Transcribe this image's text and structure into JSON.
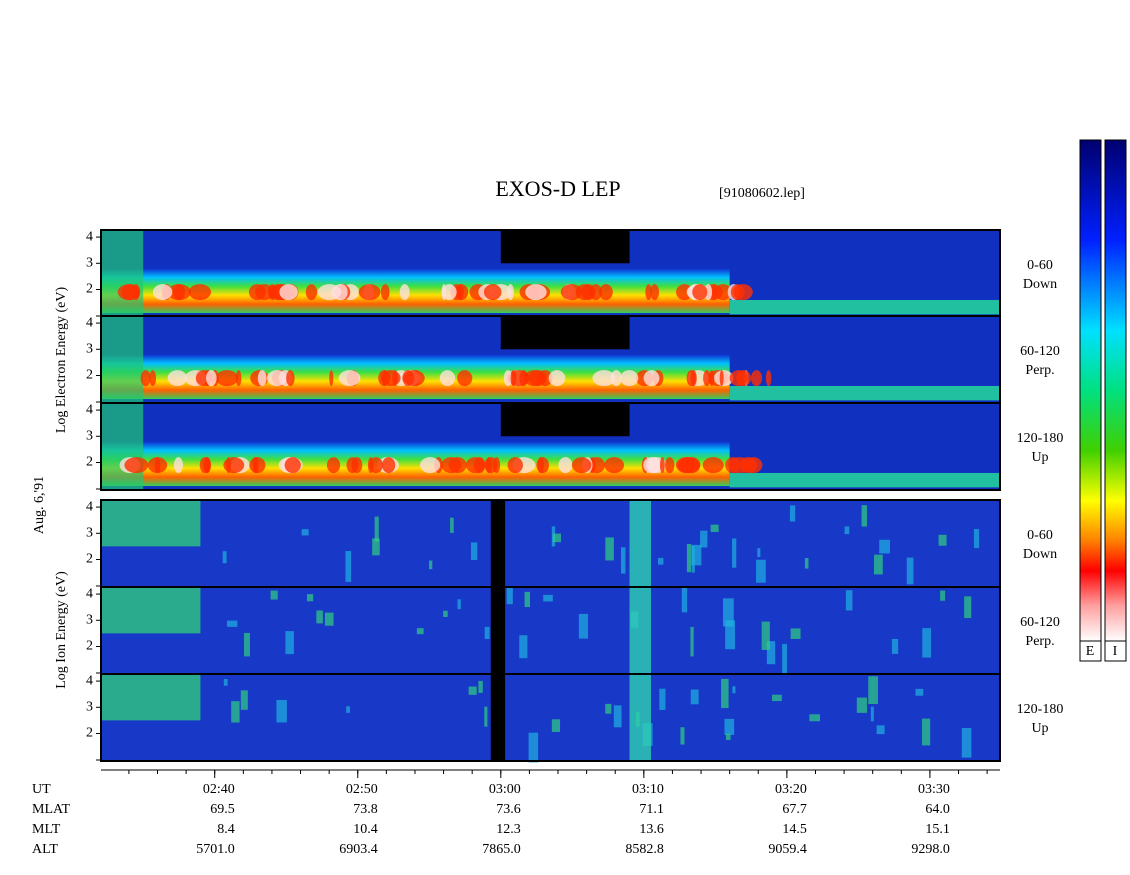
{
  "header": {
    "title": "EXOS-D LEP",
    "file": "[91080602.lep]"
  },
  "electron_axis_label": "Log Electron Energy (eV)",
  "ion_axis_label": "Log Ion Energy (eV)",
  "date": "Aug. 6,'91",
  "energy_axis": {
    "ylim": [
      0.95,
      4.27
    ],
    "yticks": [
      2,
      3,
      4
    ]
  },
  "panel_labels": [
    [
      "0-60",
      "Down"
    ],
    [
      "60-120",
      "Perp."
    ],
    [
      "120-180",
      "Up"
    ],
    [
      "0-60",
      "Down"
    ],
    [
      "60-120",
      "Perp."
    ],
    [
      "120-180",
      "Up"
    ]
  ],
  "time_axis": {
    "xlim": [
      152.05,
      214.9
    ],
    "xticks": [
      {
        "value": 160,
        "label": "02:40"
      },
      {
        "value": 170,
        "label": "02:50"
      },
      {
        "value": 180,
        "label": "03:00"
      },
      {
        "value": 190,
        "label": "03:10"
      },
      {
        "value": 200,
        "label": "03:20"
      },
      {
        "value": 210,
        "label": "03:30"
      }
    ]
  },
  "ephemeris": {
    "ut_label": "UT",
    "rows": [
      {
        "label": "MLAT",
        "values": [
          "69.5",
          "73.8",
          "73.6",
          "71.1",
          "67.7",
          "64.0"
        ]
      },
      {
        "label": "MLT",
        "values": [
          "8.4",
          "10.4",
          "12.3",
          "13.6",
          "14.5",
          "15.1"
        ]
      },
      {
        "label": "ALT",
        "values": [
          "5701.0",
          "6903.4",
          "7865.0",
          "8582.8",
          "9059.4",
          "9298.0"
        ]
      }
    ]
  },
  "colorbar_labels": [
    "E",
    "I"
  ]
}
